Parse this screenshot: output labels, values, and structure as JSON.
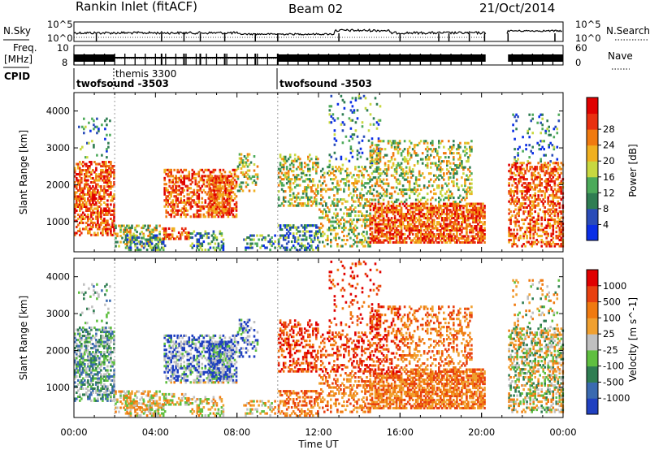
{
  "header": {
    "station": "Rankin Inlet (fitACF)",
    "beam": "Beam 02",
    "date": "21/Oct/2014"
  },
  "left_labels": {
    "nsky": "N.Sky",
    "freq_line1": "Freq.",
    "freq_line2": "[MHz]",
    "cpid": "CPID"
  },
  "right_labels": {
    "nsearch": "N.Search",
    "nave": "Nave"
  },
  "top_panel_ticks": {
    "nsky_left": [
      "10^5",
      "10^0"
    ],
    "nsky_right": [
      "10^5",
      "10^0"
    ],
    "freq_left": [
      "10",
      "8"
    ],
    "nave_right": [
      "60",
      "0"
    ]
  },
  "cpid_segments": [
    {
      "name": "twofsound -3503",
      "start_h": 0.0
    },
    {
      "name": "themis 3300",
      "start_h": 2.0
    },
    {
      "name": "twofsound -3503",
      "start_h": 10.0
    }
  ],
  "chart_data": [
    {
      "type": "heatmap",
      "title": "",
      "xlabel": "",
      "ylabel": "Slant Range [km]",
      "xlim": [
        0,
        24
      ],
      "ylim": [
        180,
        4500
      ],
      "yticks": [
        1000,
        2000,
        3000,
        4000
      ],
      "colorbar": {
        "label": "Power [dB]",
        "ticks": [
          "4",
          "8",
          "12",
          "16",
          "20",
          "24",
          "28"
        ],
        "colors": [
          "#0a2ee6",
          "#2a4cb8",
          "#2f7d52",
          "#4caa5a",
          "#c8d840",
          "#f0b020",
          "#f07a10",
          "#e83010",
          "#e00000"
        ]
      }
    },
    {
      "type": "heatmap",
      "title": "",
      "xlabel": "Time UT",
      "ylabel": "Slant Range [km]",
      "xlim": [
        0,
        24
      ],
      "ylim": [
        180,
        4500
      ],
      "yticks": [
        1000,
        2000,
        3000,
        4000
      ],
      "xticks": [
        "00:00",
        "04:00",
        "08:00",
        "12:00",
        "16:00",
        "20:00",
        "00:00"
      ],
      "colorbar": {
        "label": "Velocity [m s^-1]",
        "ticks": [
          "1000",
          "500",
          "100",
          "25",
          "-25",
          "-100",
          "-500",
          "-1000"
        ],
        "colors": [
          "#2040c0",
          "#3a6ab0",
          "#2f7d52",
          "#5fbf40",
          "#c0c0c0",
          "#f0a030",
          "#f07a10",
          "#e84010",
          "#e00000"
        ]
      }
    }
  ]
}
